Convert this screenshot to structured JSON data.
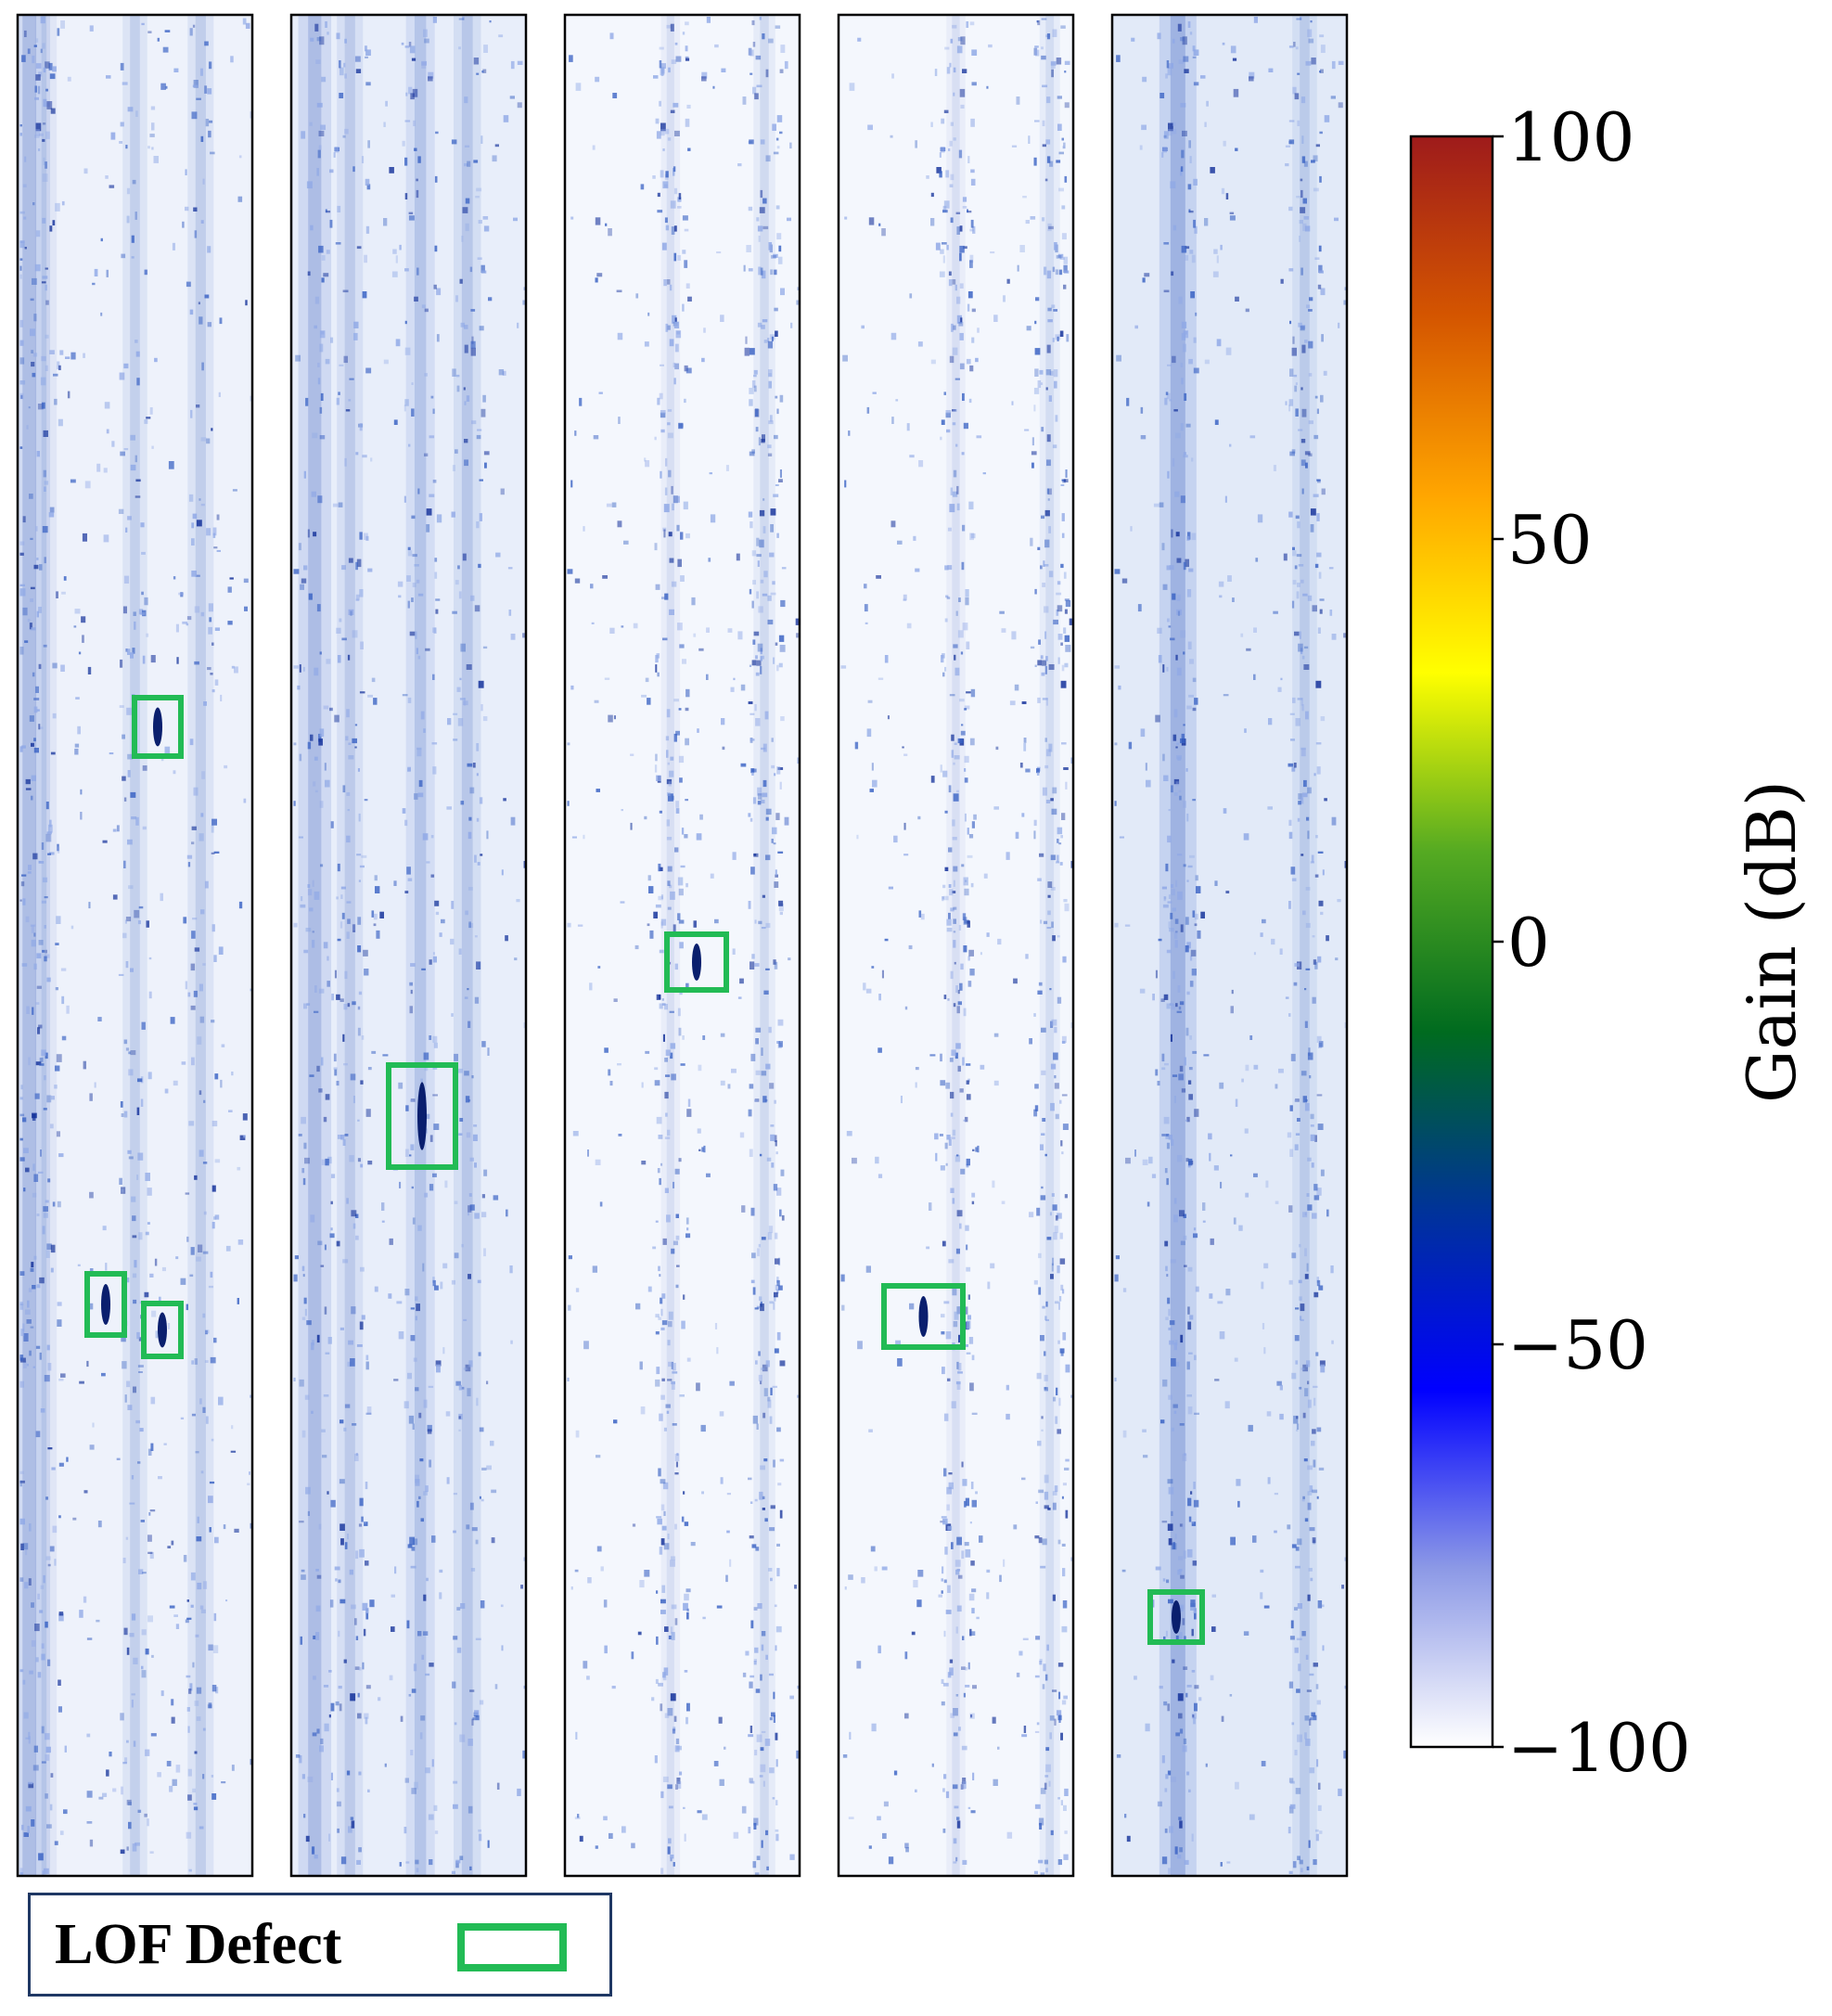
{
  "chart_data": {
    "type": "heatmap",
    "panel_count": 5,
    "colorbar": {
      "label": "Gain (dB)",
      "min": -100,
      "max": 100,
      "ticks": [
        100,
        50,
        0,
        -50,
        -100
      ],
      "tick_labels": [
        "100",
        "50",
        "0",
        "−50",
        "−100"
      ],
      "colormap": [
        "#ffffff",
        "#8c99e6",
        "#0000ff",
        "#003399",
        "#006b1f",
        "#55aa22",
        "#ffff00",
        "#ffa500",
        "#d45500",
        "#9e1b1b"
      ]
    },
    "panel_style": [
      {
        "background": "#eef2fb",
        "bands": [
          0.05,
          0.12,
          0.5,
          0.78
        ],
        "band_strength": [
          0.9,
          0.45,
          0.55,
          0.6
        ]
      },
      {
        "background": "#e8eefa",
        "bands": [
          0.1,
          0.25,
          0.55,
          0.75
        ],
        "band_strength": [
          0.85,
          0.6,
          0.7,
          0.65
        ]
      },
      {
        "background": "#f4f7fd",
        "bands": [
          0.45,
          0.85
        ],
        "band_strength": [
          0.35,
          0.45
        ]
      },
      {
        "background": "#f4f7fd",
        "bands": [
          0.5,
          0.9
        ],
        "band_strength": [
          0.35,
          0.4
        ]
      },
      {
        "background": "#e2eaf8",
        "bands": [
          0.28,
          0.82
        ],
        "band_strength": [
          1.0,
          0.55
        ]
      }
    ],
    "defect_color": "#22bb55",
    "defects_visible": true,
    "legend": {
      "label": "LOF Defect",
      "position": "bottom-left"
    }
  }
}
